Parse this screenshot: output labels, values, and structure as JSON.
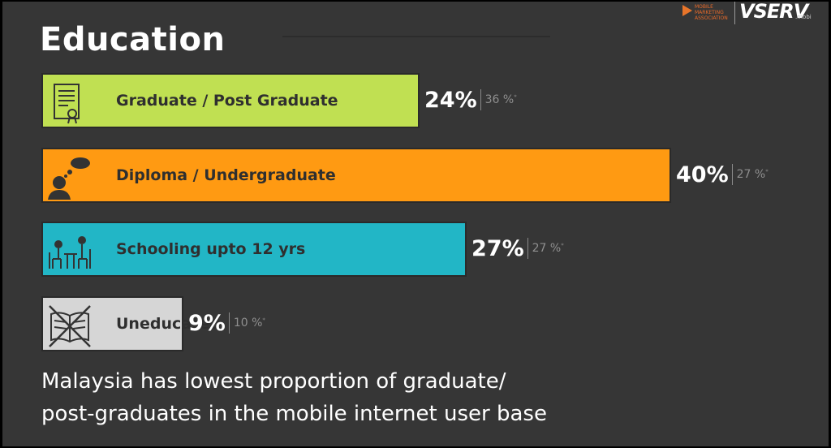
{
  "title": "Education",
  "logos": {
    "mma_text": "MOBILE MARKETING ASSOCIATION",
    "vserv": "VSERV",
    "vserv_suffix": ".mobi"
  },
  "chart_data": {
    "type": "bar",
    "orientation": "horizontal",
    "categories": [
      "Graduate / Post Graduate",
      "Diploma / Undergraduate",
      "Schooling upto 12 yrs",
      "Uneducated"
    ],
    "values": [
      24,
      40,
      27,
      9
    ],
    "value_labels": [
      "24%",
      "40%",
      "27%",
      "9%"
    ],
    "comparison_labels": [
      "36 %",
      "27 %",
      "27 %",
      "10 %"
    ],
    "comparison_marker": "*",
    "colors": [
      "#c0e052",
      "#ff9a12",
      "#22b6c6",
      "#d6d6d6"
    ],
    "icons": [
      "certificate-icon",
      "thinking-person-icon",
      "student-teacher-icon",
      "crossed-book-icon"
    ],
    "xlim": [
      0,
      40
    ]
  },
  "note": {
    "line1": "Malaysia has lowest proportion of graduate/",
    "line2": "post-graduates in the mobile internet user base"
  }
}
